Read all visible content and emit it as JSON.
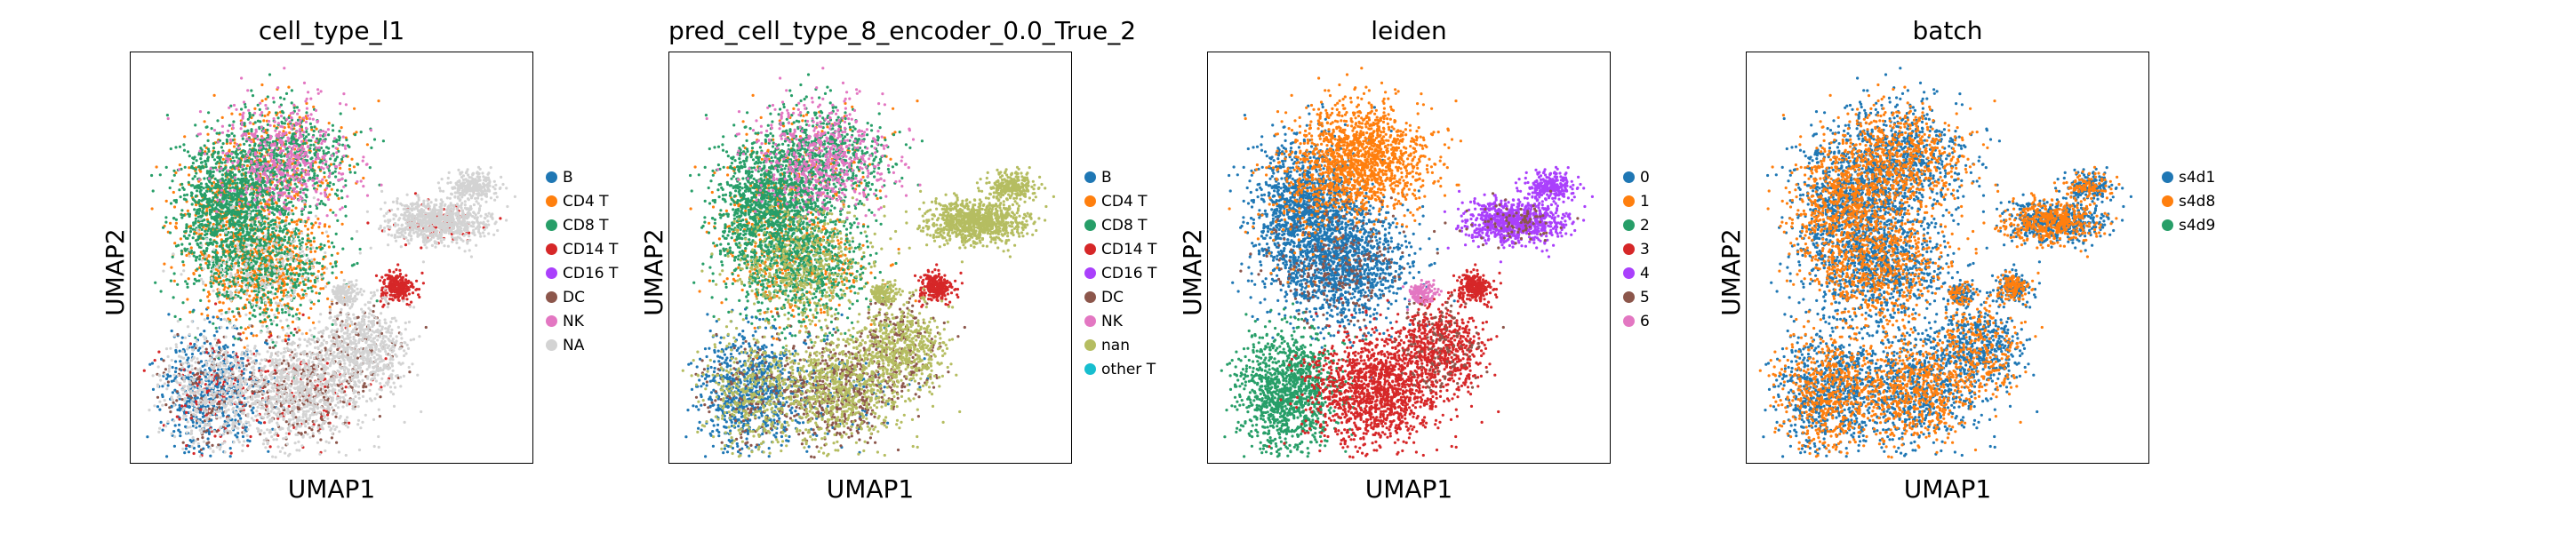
{
  "chart_data": [
    {
      "type": "scatter",
      "title": "cell_type_l1",
      "xlabel": "UMAP1",
      "ylabel": "UMAP2",
      "legend_location": "right",
      "series": [
        {
          "name": "B",
          "color": "#1f77b4"
        },
        {
          "name": "CD4 T",
          "color": "#ff7f0e"
        },
        {
          "name": "CD8 T",
          "color": "#279e68"
        },
        {
          "name": "CD14 T",
          "color": "#d62728"
        },
        {
          "name": "CD16 T",
          "color": "#aa40fc"
        },
        {
          "name": "DC",
          "color": "#8c564b"
        },
        {
          "name": "NK",
          "color": "#e377c2"
        },
        {
          "name": "NA",
          "color": "#d3d3d3"
        }
      ]
    },
    {
      "type": "scatter",
      "title": "pred_cell_type_8_encoder_0.0_True_2",
      "xlabel": "UMAP1",
      "ylabel": "UMAP2",
      "legend_location": "right",
      "series": [
        {
          "name": "B",
          "color": "#1f77b4"
        },
        {
          "name": "CD4 T",
          "color": "#ff7f0e"
        },
        {
          "name": "CD8 T",
          "color": "#279e68"
        },
        {
          "name": "CD14 T",
          "color": "#d62728"
        },
        {
          "name": "CD16 T",
          "color": "#aa40fc"
        },
        {
          "name": "DC",
          "color": "#8c564b"
        },
        {
          "name": "NK",
          "color": "#e377c2"
        },
        {
          "name": "nan",
          "color": "#b5bd61"
        },
        {
          "name": "other T",
          "color": "#17becf"
        }
      ]
    },
    {
      "type": "scatter",
      "title": "leiden",
      "xlabel": "UMAP1",
      "ylabel": "UMAP2",
      "legend_location": "right",
      "series": [
        {
          "name": "0",
          "color": "#1f77b4"
        },
        {
          "name": "1",
          "color": "#ff7f0e"
        },
        {
          "name": "2",
          "color": "#279e68"
        },
        {
          "name": "3",
          "color": "#d62728"
        },
        {
          "name": "4",
          "color": "#aa40fc"
        },
        {
          "name": "5",
          "color": "#8c564b"
        },
        {
          "name": "6",
          "color": "#e377c2"
        }
      ]
    },
    {
      "type": "scatter",
      "title": "batch",
      "xlabel": "UMAP1",
      "ylabel": "UMAP2",
      "legend_location": "right",
      "series": [
        {
          "name": "s4d1",
          "color": "#1f77b4"
        },
        {
          "name": "s4d8",
          "color": "#ff7f0e"
        },
        {
          "name": "s4d9",
          "color": "#279e68"
        }
      ]
    }
  ]
}
